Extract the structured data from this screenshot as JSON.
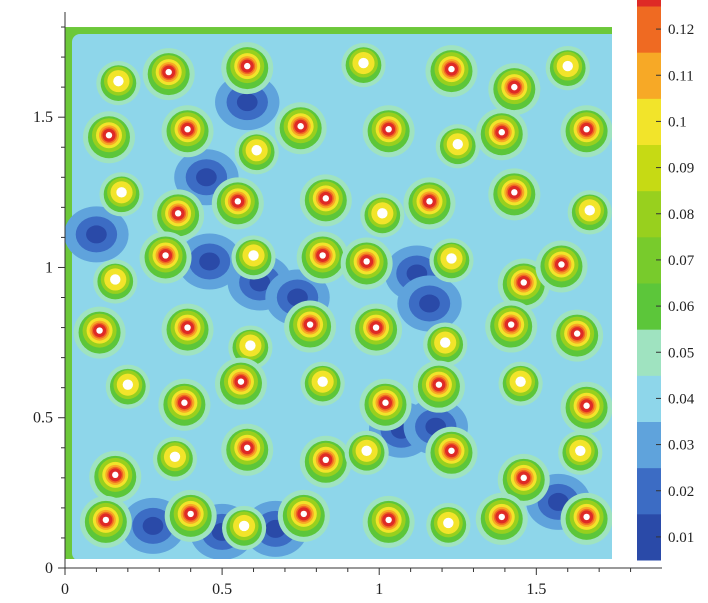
{
  "chart_data": {
    "type": "heatmap",
    "title": "",
    "xlabel": "",
    "ylabel": "",
    "xlim": [
      0,
      1.9
    ],
    "ylim": [
      0,
      1.85
    ],
    "domain_extent": [
      1.8,
      1.8
    ],
    "x_ticks": [
      {
        "value": 0,
        "label": "0"
      },
      {
        "value": 0.5,
        "label": "0.5"
      },
      {
        "value": 1,
        "label": "1"
      },
      {
        "value": 1.5,
        "label": "1.5"
      }
    ],
    "y_ticks": [
      {
        "value": 0,
        "label": "0"
      },
      {
        "value": 0.5,
        "label": "0.5"
      },
      {
        "value": 1,
        "label": "1"
      },
      {
        "value": 1.5,
        "label": "1.5"
      }
    ],
    "colorbar": {
      "min": 0.005,
      "max": 0.125,
      "ticks": [
        {
          "value": 0.01,
          "label": "0.01"
        },
        {
          "value": 0.02,
          "label": "0.02"
        },
        {
          "value": 0.03,
          "label": "0.03"
        },
        {
          "value": 0.04,
          "label": "0.04"
        },
        {
          "value": 0.05,
          "label": "0.05"
        },
        {
          "value": 0.06,
          "label": "0.06"
        },
        {
          "value": 0.07,
          "label": "0.07"
        },
        {
          "value": 0.08,
          "label": "0.08"
        },
        {
          "value": 0.09,
          "label": "0.09"
        },
        {
          "value": 0.1,
          "label": "0.1"
        },
        {
          "value": 0.11,
          "label": "0.11"
        },
        {
          "value": 0.12,
          "label": "0.12"
        }
      ],
      "colors": [
        "#2a4aa8",
        "#3c6cc4",
        "#5fa3dc",
        "#8ed6ea",
        "#9fe3c0",
        "#5cc63a",
        "#78cb2c",
        "#98d01e",
        "#c6da14",
        "#f2e42a",
        "#f7a926",
        "#ef6a22",
        "#de2a26"
      ]
    },
    "background_level": 0.045,
    "hot_spots": [
      [
        0.17,
        1.62
      ],
      [
        0.33,
        1.65
      ],
      [
        0.58,
        1.67
      ],
      [
        0.95,
        1.68
      ],
      [
        1.23,
        1.66
      ],
      [
        1.43,
        1.6
      ],
      [
        1.6,
        1.67
      ],
      [
        0.14,
        1.44
      ],
      [
        0.39,
        1.46
      ],
      [
        0.61,
        1.39
      ],
      [
        0.75,
        1.47
      ],
      [
        1.03,
        1.46
      ],
      [
        1.25,
        1.41
      ],
      [
        1.39,
        1.45
      ],
      [
        1.66,
        1.46
      ],
      [
        0.18,
        1.25
      ],
      [
        0.55,
        1.22
      ],
      [
        0.83,
        1.23
      ],
      [
        1.01,
        1.18
      ],
      [
        1.16,
        1.22
      ],
      [
        1.43,
        1.25
      ],
      [
        1.67,
        1.19
      ],
      [
        0.36,
        1.18
      ],
      [
        0.32,
        1.04
      ],
      [
        0.6,
        1.04
      ],
      [
        0.82,
        1.04
      ],
      [
        0.96,
        1.02
      ],
      [
        1.23,
        1.03
      ],
      [
        1.46,
        0.95
      ],
      [
        1.58,
        1.01
      ],
      [
        0.16,
        0.96
      ],
      [
        0.11,
        0.79
      ],
      [
        0.39,
        0.8
      ],
      [
        0.59,
        0.74
      ],
      [
        0.78,
        0.81
      ],
      [
        0.99,
        0.8
      ],
      [
        1.21,
        0.75
      ],
      [
        1.42,
        0.81
      ],
      [
        1.63,
        0.78
      ],
      [
        0.2,
        0.61
      ],
      [
        0.38,
        0.55
      ],
      [
        0.56,
        0.62
      ],
      [
        0.82,
        0.62
      ],
      [
        1.02,
        0.55
      ],
      [
        1.19,
        0.61
      ],
      [
        1.45,
        0.62
      ],
      [
        1.66,
        0.54
      ],
      [
        0.16,
        0.31
      ],
      [
        0.35,
        0.37
      ],
      [
        0.58,
        0.4
      ],
      [
        0.83,
        0.36
      ],
      [
        0.96,
        0.39
      ],
      [
        1.23,
        0.39
      ],
      [
        1.46,
        0.3
      ],
      [
        1.64,
        0.39
      ],
      [
        0.13,
        0.16
      ],
      [
        0.4,
        0.18
      ],
      [
        0.57,
        0.14
      ],
      [
        0.76,
        0.18
      ],
      [
        1.03,
        0.16
      ],
      [
        1.22,
        0.15
      ],
      [
        1.39,
        0.17
      ],
      [
        1.66,
        0.17
      ]
    ],
    "cold_spots": [
      [
        0.1,
        1.11
      ],
      [
        0.46,
        1.02
      ],
      [
        0.45,
        1.3
      ],
      [
        0.62,
        0.95
      ],
      [
        0.74,
        0.9
      ],
      [
        1.12,
        0.98
      ],
      [
        1.16,
        0.88
      ],
      [
        1.07,
        0.46
      ],
      [
        1.18,
        0.47
      ],
      [
        0.28,
        0.14
      ],
      [
        0.5,
        0.12
      ],
      [
        0.67,
        0.13
      ],
      [
        1.57,
        0.22
      ],
      [
        0.58,
        1.55
      ]
    ]
  }
}
